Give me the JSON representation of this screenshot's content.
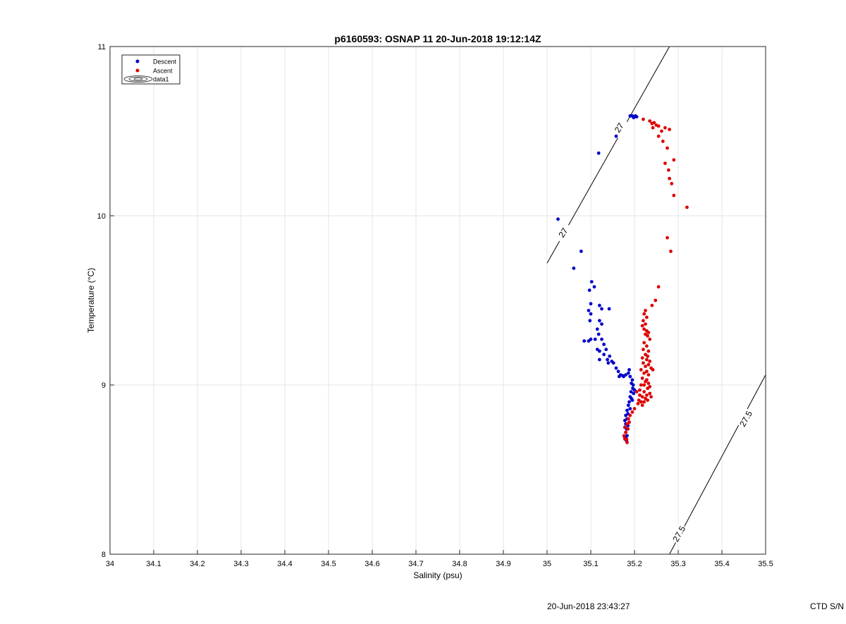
{
  "chart_data": {
    "type": "scatter",
    "title": "p6160593: OSNAP 11 20-Jun-2018 19:12:14Z",
    "xlabel": "Salinity (psu)",
    "ylabel": "Temperature (°C)",
    "xlim": [
      34,
      35.5
    ],
    "ylim": [
      8,
      11
    ],
    "xticks": [
      "34",
      "34.1",
      "34.2",
      "34.3",
      "34.4",
      "34.5",
      "34.6",
      "34.7",
      "34.8",
      "34.9",
      "35",
      "35.1",
      "35.2",
      "35.3",
      "35.4",
      "35.5"
    ],
    "yticks": [
      "8",
      "9",
      "10",
      "11"
    ],
    "grid": true,
    "legend_placement": "top-left",
    "legend": [
      "Descent",
      "Ascent",
      "data1"
    ],
    "series": [
      {
        "name": "Descent",
        "color": "#0000cc",
        "points": [
          [
            35.195,
            10.59
          ],
          [
            35.2,
            10.585
          ],
          [
            35.205,
            10.585
          ],
          [
            35.19,
            10.59
          ],
          [
            35.198,
            10.58
          ],
          [
            35.202,
            10.59
          ],
          [
            35.158,
            10.47
          ],
          [
            35.118,
            10.37
          ],
          [
            35.025,
            9.98
          ],
          [
            35.078,
            9.79
          ],
          [
            35.061,
            9.69
          ],
          [
            35.102,
            9.61
          ],
          [
            35.097,
            9.56
          ],
          [
            35.108,
            9.58
          ],
          [
            35.1,
            9.48
          ],
          [
            35.095,
            9.44
          ],
          [
            35.12,
            9.47
          ],
          [
            35.1,
            9.42
          ],
          [
            35.098,
            9.38
          ],
          [
            35.125,
            9.45
          ],
          [
            35.142,
            9.45
          ],
          [
            35.12,
            9.38
          ],
          [
            35.115,
            9.33
          ],
          [
            35.125,
            9.36
          ],
          [
            35.118,
            9.3
          ],
          [
            35.11,
            9.27
          ],
          [
            35.095,
            9.26
          ],
          [
            35.085,
            9.26
          ],
          [
            35.1,
            9.27
          ],
          [
            35.125,
            9.27
          ],
          [
            35.13,
            9.24
          ],
          [
            35.115,
            9.21
          ],
          [
            35.12,
            9.2
          ],
          [
            35.135,
            9.21
          ],
          [
            35.13,
            9.18
          ],
          [
            35.143,
            9.17
          ],
          [
            35.12,
            9.15
          ],
          [
            35.148,
            9.14
          ],
          [
            35.138,
            9.15
          ],
          [
            35.14,
            9.13
          ],
          [
            35.152,
            9.13
          ],
          [
            35.158,
            9.1
          ],
          [
            35.163,
            9.08
          ],
          [
            35.168,
            9.06
          ],
          [
            35.173,
            9.055
          ],
          [
            35.165,
            9.05
          ],
          [
            35.175,
            9.05
          ],
          [
            35.18,
            9.06
          ],
          [
            35.188,
            9.09
          ],
          [
            35.186,
            9.07
          ],
          [
            35.19,
            9.05
          ],
          [
            35.195,
            9.03
          ],
          [
            35.193,
            9.01
          ],
          [
            35.197,
            9.0
          ],
          [
            35.196,
            8.98
          ],
          [
            35.2,
            8.97
          ],
          [
            35.192,
            8.96
          ],
          [
            35.198,
            8.95
          ],
          [
            35.19,
            8.93
          ],
          [
            35.193,
            8.92
          ],
          [
            35.195,
            8.91
          ],
          [
            35.188,
            8.9
          ],
          [
            35.186,
            8.88
          ],
          [
            35.19,
            8.86
          ],
          [
            35.183,
            8.85
          ],
          [
            35.185,
            8.83
          ],
          [
            35.18,
            8.82
          ],
          [
            35.183,
            8.8
          ],
          [
            35.178,
            8.79
          ],
          [
            35.18,
            8.77
          ],
          [
            35.185,
            8.76
          ],
          [
            35.178,
            8.75
          ],
          [
            35.182,
            8.74
          ],
          [
            35.18,
            8.72
          ],
          [
            35.183,
            8.7
          ],
          [
            35.178,
            8.69
          ],
          [
            35.182,
            8.67
          ]
        ]
      },
      {
        "name": "Ascent",
        "color": "#dd0000",
        "points": [
          [
            35.22,
            10.57
          ],
          [
            35.235,
            10.56
          ],
          [
            35.24,
            10.545
          ],
          [
            35.245,
            10.55
          ],
          [
            35.25,
            10.535
          ],
          [
            35.255,
            10.53
          ],
          [
            35.242,
            10.52
          ],
          [
            35.27,
            10.52
          ],
          [
            35.28,
            10.51
          ],
          [
            35.262,
            10.5
          ],
          [
            35.255,
            10.47
          ],
          [
            35.265,
            10.44
          ],
          [
            35.275,
            10.4
          ],
          [
            35.29,
            10.33
          ],
          [
            35.27,
            10.31
          ],
          [
            35.278,
            10.27
          ],
          [
            35.28,
            10.22
          ],
          [
            35.285,
            10.19
          ],
          [
            35.29,
            10.12
          ],
          [
            35.32,
            10.05
          ],
          [
            35.275,
            9.87
          ],
          [
            35.283,
            9.79
          ],
          [
            35.255,
            9.58
          ],
          [
            35.248,
            9.5
          ],
          [
            35.24,
            9.47
          ],
          [
            35.225,
            9.44
          ],
          [
            35.222,
            9.42
          ],
          [
            35.228,
            9.4
          ],
          [
            35.22,
            9.38
          ],
          [
            35.225,
            9.36
          ],
          [
            35.218,
            9.35
          ],
          [
            35.222,
            9.33
          ],
          [
            35.228,
            9.32
          ],
          [
            35.232,
            9.31
          ],
          [
            35.225,
            9.3
          ],
          [
            35.23,
            9.29
          ],
          [
            35.235,
            9.27
          ],
          [
            35.222,
            9.25
          ],
          [
            35.228,
            9.23
          ],
          [
            35.22,
            9.21
          ],
          [
            35.232,
            9.2
          ],
          [
            35.225,
            9.18
          ],
          [
            35.23,
            9.17
          ],
          [
            35.218,
            9.16
          ],
          [
            35.228,
            9.15
          ],
          [
            35.235,
            9.14
          ],
          [
            35.22,
            9.13
          ],
          [
            35.232,
            9.12
          ],
          [
            35.225,
            9.11
          ],
          [
            35.238,
            9.1
          ],
          [
            35.215,
            9.09
          ],
          [
            35.242,
            9.09
          ],
          [
            35.228,
            9.08
          ],
          [
            35.222,
            9.07
          ],
          [
            35.232,
            9.06
          ],
          [
            35.218,
            9.04
          ],
          [
            35.228,
            9.03
          ],
          [
            35.225,
            9.02
          ],
          [
            35.232,
            9.01
          ],
          [
            35.215,
            9.0
          ],
          [
            35.222,
            9.0
          ],
          [
            35.235,
            8.99
          ],
          [
            35.23,
            8.98
          ],
          [
            35.212,
            8.97
          ],
          [
            35.205,
            8.96
          ],
          [
            35.222,
            8.96
          ],
          [
            35.235,
            8.95
          ],
          [
            35.228,
            8.94
          ],
          [
            35.212,
            8.94
          ],
          [
            35.238,
            8.93
          ],
          [
            35.218,
            8.93
          ],
          [
            35.225,
            8.92
          ],
          [
            35.21,
            8.91
          ],
          [
            35.23,
            8.91
          ],
          [
            35.215,
            8.9
          ],
          [
            35.222,
            8.9
          ],
          [
            35.208,
            8.89
          ],
          [
            35.218,
            8.88
          ],
          [
            35.2,
            8.86
          ],
          [
            35.195,
            8.84
          ],
          [
            35.19,
            8.82
          ],
          [
            35.186,
            8.8
          ],
          [
            35.188,
            8.78
          ],
          [
            35.183,
            8.77
          ],
          [
            35.178,
            8.75
          ],
          [
            35.185,
            8.74
          ],
          [
            35.18,
            8.72
          ],
          [
            35.176,
            8.7
          ],
          [
            35.182,
            8.68
          ],
          [
            35.178,
            8.68
          ],
          [
            35.183,
            8.66
          ]
        ]
      }
    ],
    "contours": [
      {
        "label": "27",
        "line": [
          [
            35.0,
            9.72
          ],
          [
            35.28,
            11.0
          ]
        ],
        "label_positions": [
          [
            35.165,
            10.52
          ],
          [
            35.037,
            9.9
          ]
        ],
        "label_angle": -57
      },
      {
        "label": "27.5",
        "line": [
          [
            35.28,
            8.0
          ],
          [
            35.5,
            9.06
          ]
        ],
        "label_positions": [
          [
            35.455,
            8.8
          ],
          [
            35.302,
            8.12
          ]
        ],
        "label_angle": -60
      }
    ]
  },
  "footer": {
    "timestamp": "20-Jun-2018 23:43:27",
    "device": "CTD S/N"
  }
}
